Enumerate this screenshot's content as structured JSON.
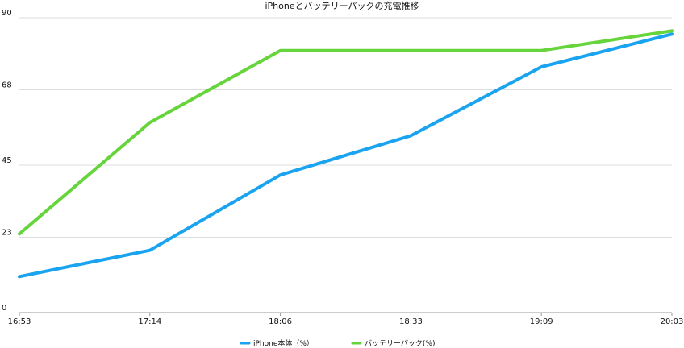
{
  "chart_data": {
    "type": "line",
    "title": "iPhoneとバッテリーパックの充電推移",
    "xlabel": "",
    "ylabel": "",
    "categories": [
      "16:53",
      "17:14",
      "18:06",
      "18:33",
      "19:09",
      "20:03"
    ],
    "y_ticks": [
      "0",
      "23",
      "45",
      "68",
      "90"
    ],
    "ylim": [
      0,
      90
    ],
    "grid": true,
    "legend_position": "bottom",
    "series": [
      {
        "name": "iPhone本体（%）",
        "color": "#1aa3ef",
        "values": [
          11,
          19,
          42,
          54,
          75,
          85
        ]
      },
      {
        "name": "バッテリーパック(%)",
        "color": "#66d43b",
        "values": [
          24,
          58,
          80,
          80,
          80,
          86
        ]
      }
    ]
  }
}
